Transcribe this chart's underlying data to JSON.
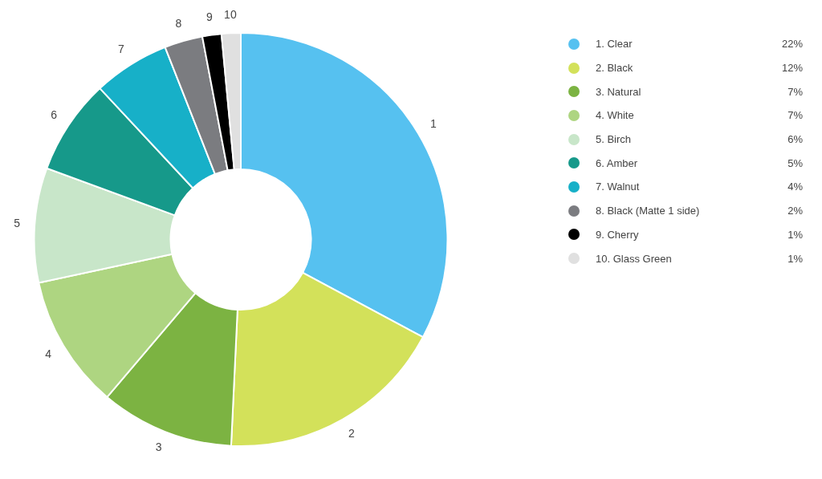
{
  "chart_data": {
    "type": "donut",
    "legend": "right",
    "categories": [
      "1. Clear",
      "2. Black",
      "3. Natural",
      "4. White",
      "5. Birch",
      "6. Amber",
      "7. Walnut",
      "8. Black (Matte 1 side)",
      "9. Cherry",
      "10. Glass Green"
    ],
    "values": [
      22,
      12,
      7,
      7,
      6,
      5,
      4,
      2,
      1,
      1
    ],
    "value_labels": [
      "22%",
      "12%",
      "7%",
      "7%",
      "6%",
      "5%",
      "4%",
      "2%",
      "1%",
      "1%"
    ],
    "colors": [
      "#56c1f0",
      "#d3e15a",
      "#7cb342",
      "#aed581",
      "#c8e6c9",
      "#16998a",
      "#17b0c8",
      "#7b7c80",
      "#000000",
      "#e0e0e0"
    ],
    "annotations": [
      "1",
      "2",
      "3",
      "4",
      "5",
      "6",
      "7",
      "8",
      "9",
      "10"
    ]
  }
}
